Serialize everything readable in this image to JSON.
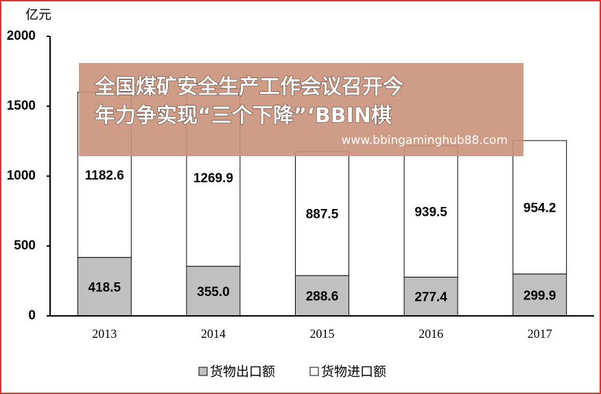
{
  "chart_data": {
    "type": "stacked_bar",
    "y_label": "亿元",
    "categories": [
      "2013",
      "2014",
      "2015",
      "2016",
      "2017"
    ],
    "series": [
      {
        "name": "货物出口额",
        "color": "#c0c0c0",
        "values": [
          418.5,
          355.0,
          288.6,
          277.4,
          299.9
        ],
        "value_labels": [
          "418.5",
          "355.0",
          "288.6",
          "277.4",
          "299.9"
        ]
      },
      {
        "name": "货物进口额",
        "color": "#ffffff",
        "values": [
          1182.6,
          1269.9,
          887.5,
          939.5,
          954.2
        ],
        "value_labels": [
          "1182.6",
          "1269.9",
          "887.5",
          "939.5",
          "954.2"
        ]
      }
    ],
    "ylim": [
      0,
      2000
    ],
    "yticks": [
      0,
      500,
      1000,
      1500,
      2000
    ],
    "legend": "bottom"
  },
  "overlay": {
    "lines": [
      "全国煤矿安全生产工作会议召开今",
      "年力争实现“三个下降”‘BBIN棋"
    ],
    "url": "www.bbingaminghub88.com"
  }
}
